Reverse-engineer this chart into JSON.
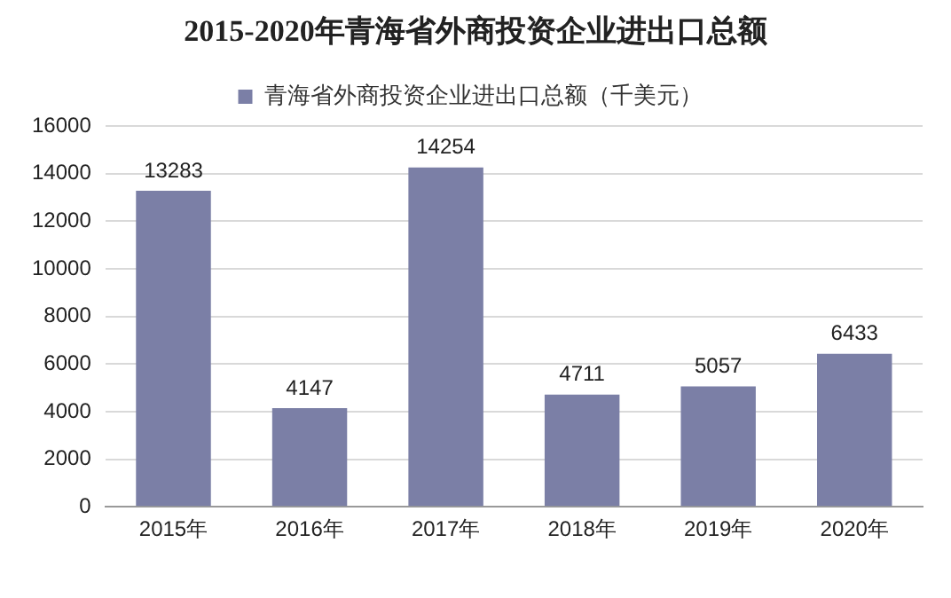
{
  "chart_data": {
    "type": "bar",
    "title": "2015-2020年青海省外商投资企业进出口总额",
    "categories": [
      "2015年",
      "2016年",
      "2017年",
      "2018年",
      "2019年",
      "2020年"
    ],
    "series": [
      {
        "name": "青海省外商投资企业进出口总额（千美元）",
        "color": "#7b7fa6",
        "values": [
          13283,
          4147,
          14254,
          4711,
          5057,
          6433
        ]
      }
    ],
    "ylim": [
      0,
      16000
    ],
    "yticks": [
      0,
      2000,
      4000,
      6000,
      8000,
      10000,
      12000,
      14000,
      16000
    ],
    "grid": "y",
    "legend": "top",
    "data_labels": true
  }
}
